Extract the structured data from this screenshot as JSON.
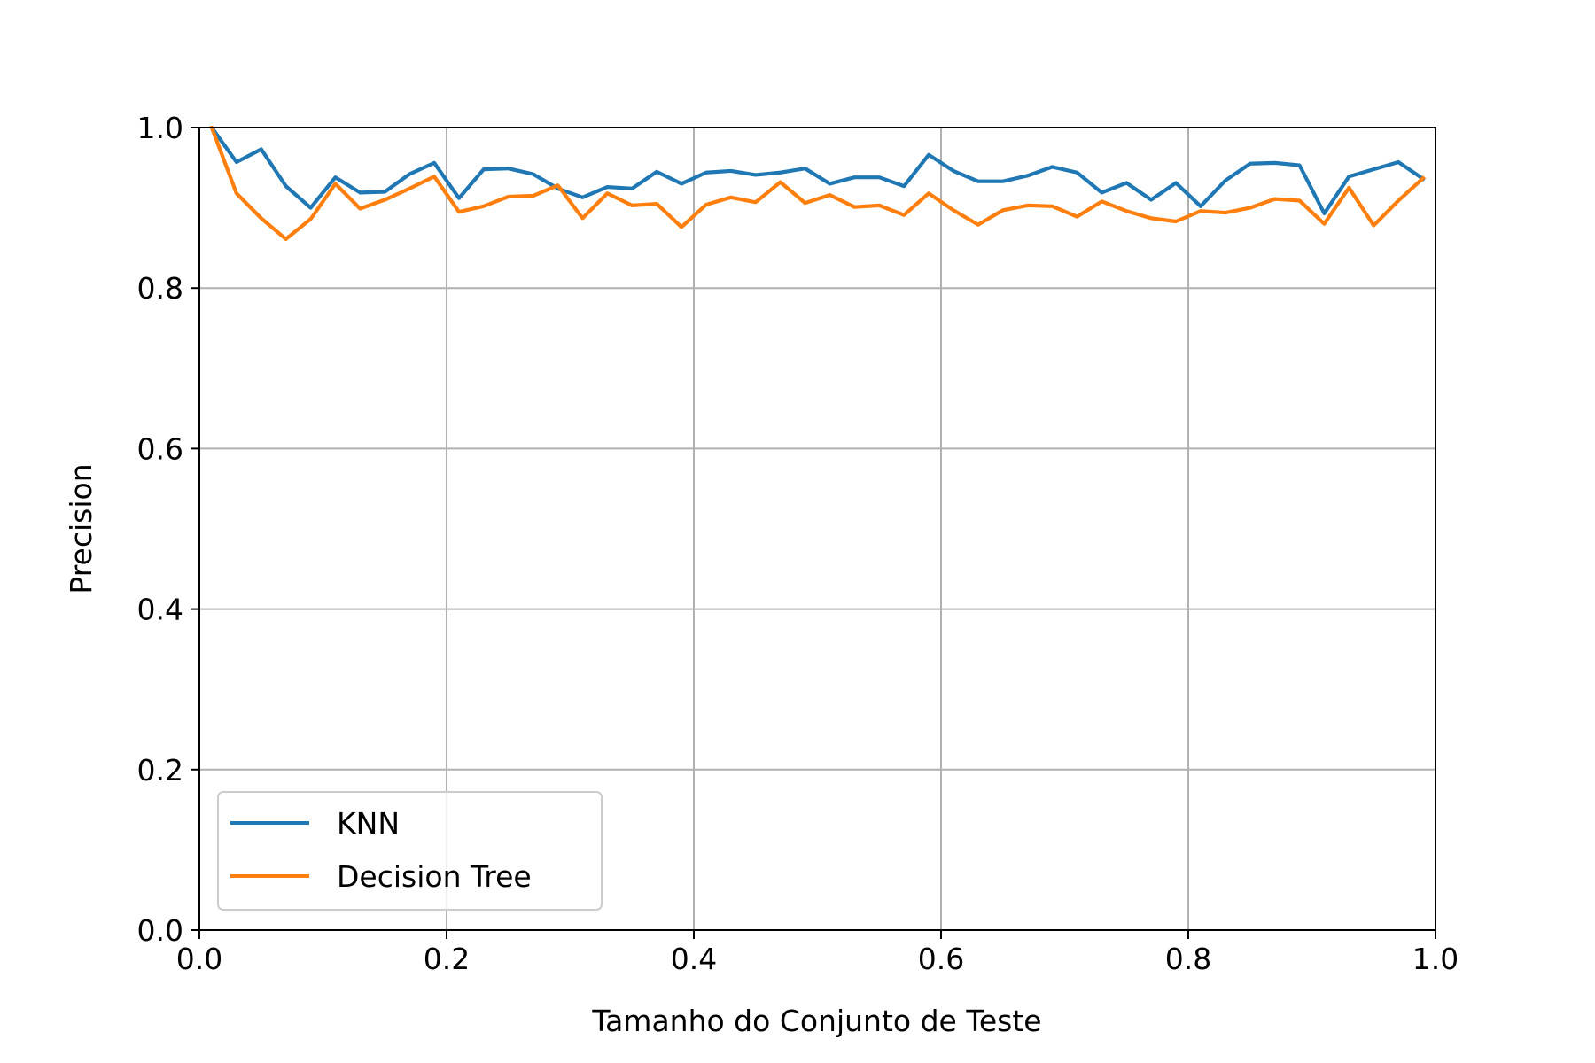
{
  "chart_data": {
    "type": "line",
    "title": "",
    "xlabel": "Tamanho do Conjunto de Teste",
    "ylabel": "Precision",
    "xlim": [
      0.0,
      1.0
    ],
    "ylim": [
      0.0,
      1.0
    ],
    "xticks": [
      "0.0",
      "0.2",
      "0.4",
      "0.6",
      "0.8",
      "1.0"
    ],
    "yticks": [
      "0.0",
      "0.2",
      "0.4",
      "0.6",
      "0.8",
      "1.0"
    ],
    "grid": true,
    "legend_position": "lower-left",
    "x": [
      0.01,
      0.03,
      0.05,
      0.07,
      0.09,
      0.11,
      0.13,
      0.15,
      0.17,
      0.19,
      0.21,
      0.23,
      0.25,
      0.27,
      0.29,
      0.31,
      0.33,
      0.35,
      0.37,
      0.39,
      0.41,
      0.43,
      0.45,
      0.47,
      0.49,
      0.51,
      0.53,
      0.55,
      0.57,
      0.59,
      0.61,
      0.63,
      0.65,
      0.67,
      0.69,
      0.71,
      0.73,
      0.75,
      0.77,
      0.79,
      0.81,
      0.83,
      0.85,
      0.87,
      0.89,
      0.91,
      0.93,
      0.95,
      0.97,
      0.99
    ],
    "series": [
      {
        "name": "KNN",
        "color": "#1f77b4",
        "values": [
          1.0,
          0.957,
          0.973,
          0.927,
          0.9,
          0.938,
          0.919,
          0.92,
          0.942,
          0.956,
          0.912,
          0.948,
          0.949,
          0.942,
          0.924,
          0.913,
          0.926,
          0.924,
          0.945,
          0.93,
          0.944,
          0.946,
          0.941,
          0.944,
          0.949,
          0.93,
          0.938,
          0.938,
          0.927,
          0.966,
          0.946,
          0.933,
          0.933,
          0.94,
          0.951,
          0.944,
          0.919,
          0.931,
          0.91,
          0.931,
          0.902,
          0.934,
          0.955,
          0.956,
          0.953,
          0.893,
          0.939,
          0.948,
          0.957,
          0.936
        ]
      },
      {
        "name": "Decision Tree",
        "color": "#ff7f0e",
        "values": [
          1.0,
          0.918,
          0.887,
          0.861,
          0.886,
          0.93,
          0.899,
          0.91,
          0.924,
          0.939,
          0.895,
          0.902,
          0.914,
          0.915,
          0.928,
          0.887,
          0.918,
          0.903,
          0.905,
          0.876,
          0.904,
          0.913,
          0.907,
          0.932,
          0.906,
          0.916,
          0.901,
          0.903,
          0.891,
          0.918,
          0.897,
          0.879,
          0.897,
          0.903,
          0.902,
          0.889,
          0.908,
          0.896,
          0.887,
          0.883,
          0.896,
          0.894,
          0.9,
          0.911,
          0.909,
          0.88,
          0.925,
          0.878,
          0.909,
          0.937
        ]
      }
    ]
  }
}
